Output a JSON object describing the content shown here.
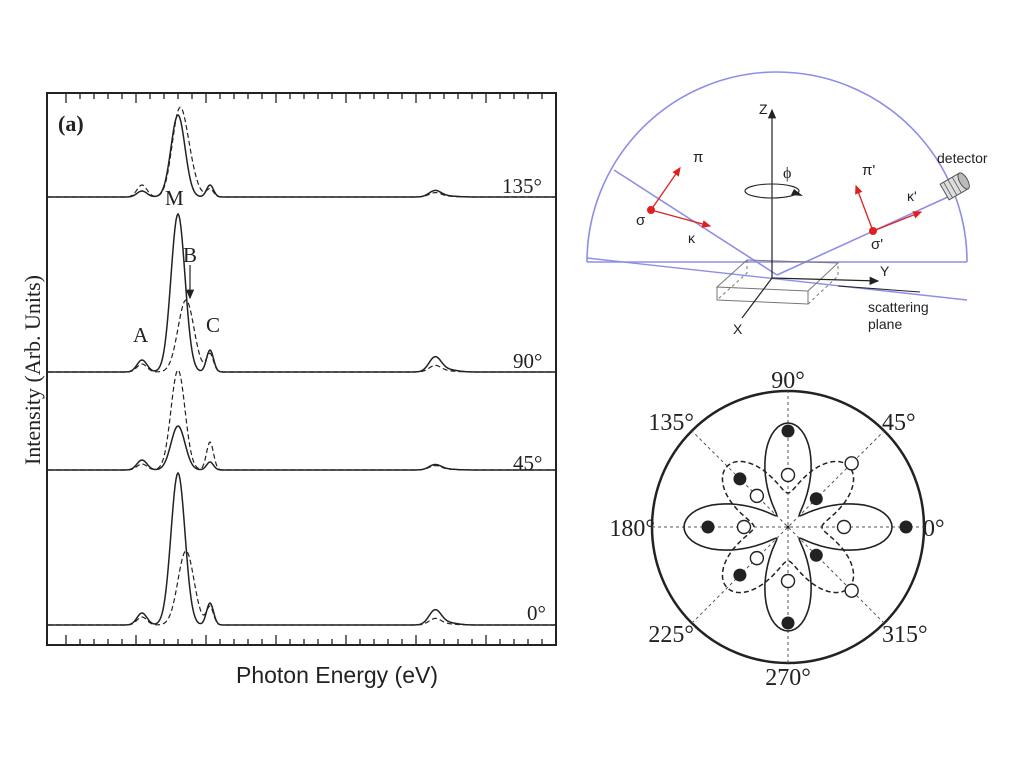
{
  "panel_a": {
    "label": "(a)",
    "xlabel": "Photon Energy (eV)",
    "ylabel": "Intensity (Arb. Units)",
    "spectra": [
      {
        "angle": "135°"
      },
      {
        "angle": "90°"
      },
      {
        "angle": "45°"
      },
      {
        "angle": "0°"
      }
    ],
    "peaks": {
      "a": "A",
      "m": "M",
      "b": "B",
      "c": "C"
    }
  },
  "diagram": {
    "z": "Z",
    "x": "X",
    "y": "Y",
    "phi": "ϕ",
    "pi": "π",
    "sigma": "σ",
    "kappa": "κ",
    "pi_prime": "π'",
    "sigma_prime": "σ'",
    "kappa_prime": "κ'",
    "detector": "detector",
    "scattering_plane_1": "scattering",
    "scattering_plane_2": "plane"
  },
  "polar": {
    "angles": [
      "0°",
      "45°",
      "90°",
      "135°",
      "180°",
      "225°",
      "270°",
      "315°"
    ]
  },
  "colors": {
    "ink": "#222222",
    "arc": "#8e8ee8",
    "red": "#e02020"
  }
}
